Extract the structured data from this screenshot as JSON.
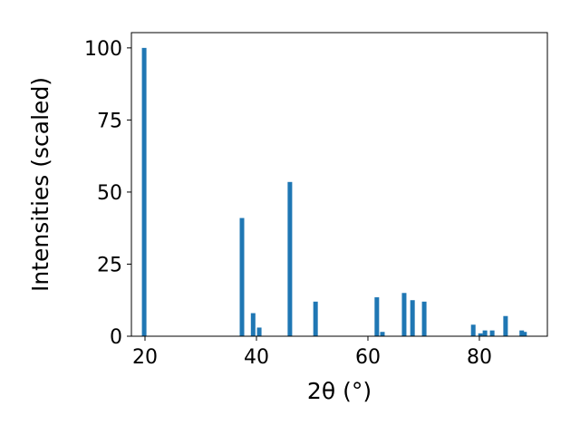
{
  "chart_data": {
    "type": "bar",
    "xlabel": "2θ (°)",
    "ylabel": "Intensities (scaled)",
    "x": [
      19.85,
      37.4,
      39.4,
      40.5,
      46.0,
      50.6,
      61.6,
      62.6,
      66.5,
      68.0,
      70.1,
      78.9,
      80.2,
      81.0,
      82.3,
      84.7,
      87.6,
      88.1
    ],
    "values": [
      100,
      41,
      8,
      3,
      53.5,
      12,
      13.5,
      1.5,
      15,
      12.5,
      12,
      4,
      1,
      2,
      2,
      7,
      2,
      1.5
    ],
    "color": "#1f77b4",
    "xlim": [
      17.56,
      92.2
    ],
    "xticks": [
      20,
      40,
      60,
      80
    ],
    "ylim": [
      0,
      105.3
    ],
    "yticks": [
      0,
      25,
      50,
      75,
      100
    ]
  }
}
